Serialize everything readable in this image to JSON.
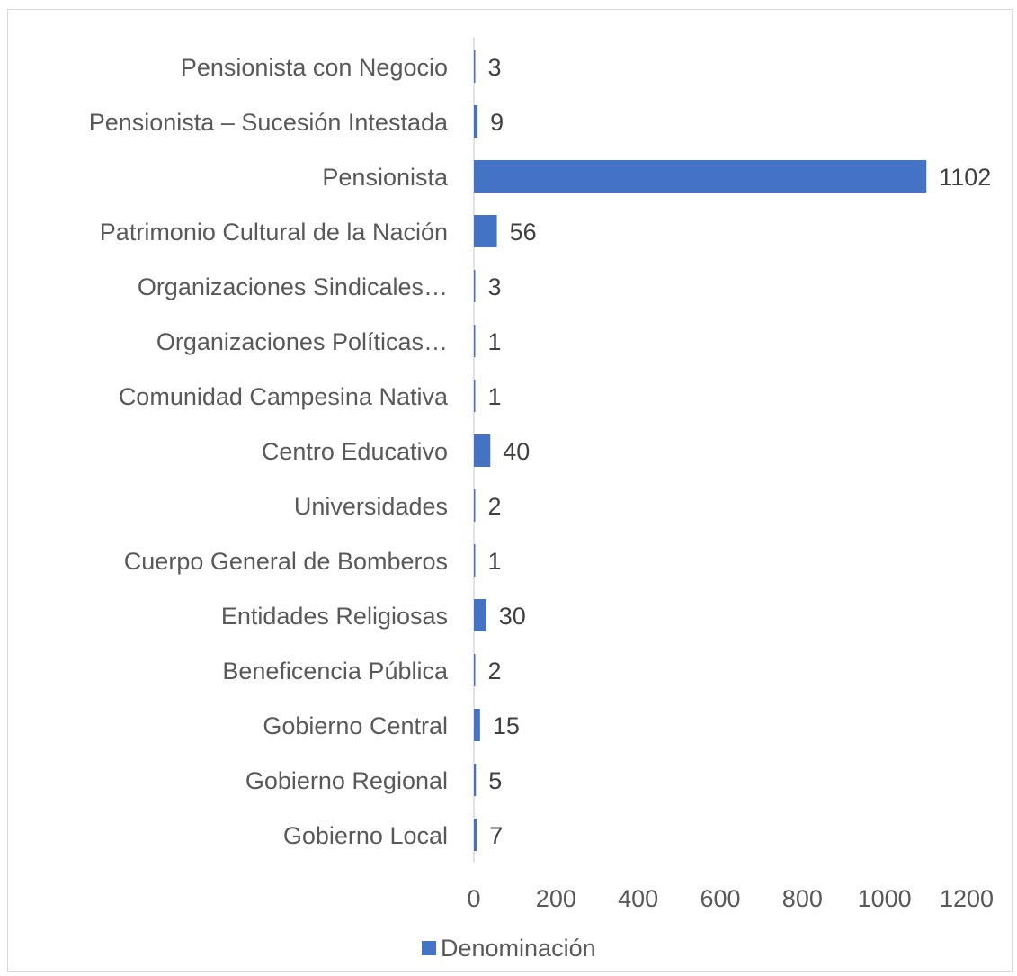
{
  "chart_data": {
    "type": "bar",
    "orientation": "horizontal",
    "title": "",
    "xlabel": "",
    "ylabel": "",
    "categories": [
      "Pensionista con Negocio",
      "Pensionista – Sucesión Intestada",
      "Pensionista",
      "Patrimonio Cultural de la Nación",
      "Organizaciones Sindicales…",
      "Organizaciones Políticas…",
      "Comunidad Campesina Nativa",
      "Centro Educativo",
      "Universidades",
      "Cuerpo General de Bomberos",
      "Entidades Religiosas",
      "Beneficencia Pública",
      "Gobierno Central",
      "Gobierno Regional",
      "Gobierno Local"
    ],
    "series": [
      {
        "name": "Denominación",
        "color": "#4472C4",
        "values": [
          3,
          9,
          1102,
          56,
          3,
          1,
          1,
          40,
          2,
          1,
          30,
          2,
          15,
          5,
          7
        ]
      }
    ],
    "xlim": [
      0,
      1200
    ],
    "xticks": [
      "0",
      "200",
      "400",
      "600",
      "800",
      "1000",
      "1200"
    ],
    "grid": false,
    "legend": {
      "position": "bottom",
      "entries": [
        "Denominación"
      ]
    }
  }
}
